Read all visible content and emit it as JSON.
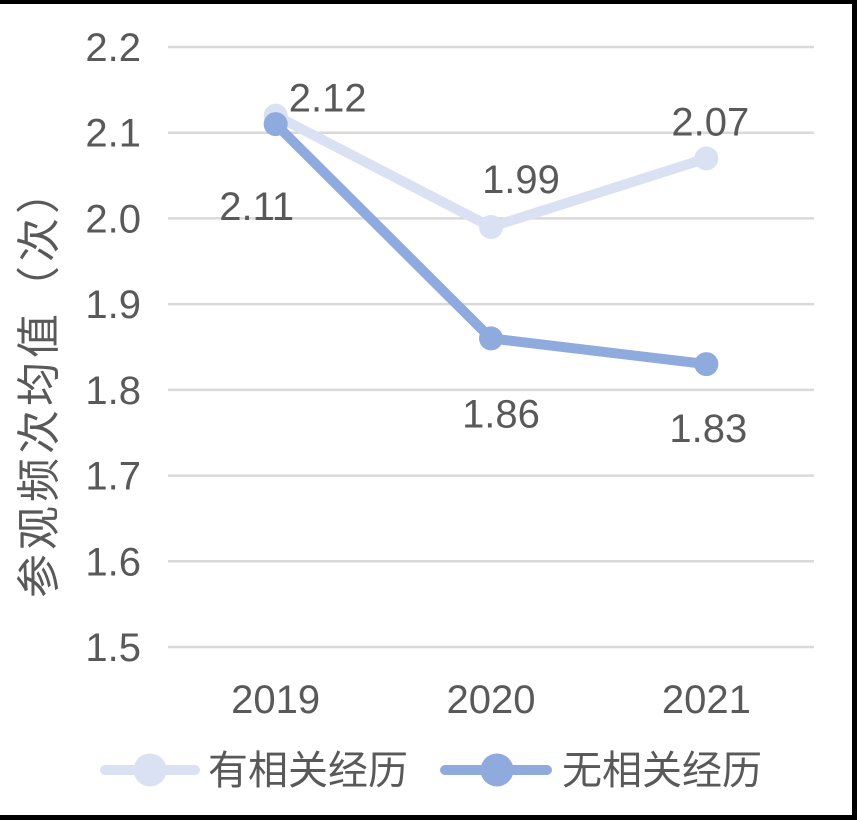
{
  "chart_data": {
    "type": "line",
    "title": "",
    "xlabel": "",
    "ylabel": "参观频次均值（次）",
    "categories": [
      "2019",
      "2020",
      "2021"
    ],
    "series": [
      {
        "name": "有相关经历",
        "color": "#D9E1F2",
        "values": [
          2.12,
          1.99,
          2.07
        ],
        "data_labels": [
          "2.12",
          "1.99",
          "2.07"
        ]
      },
      {
        "name": "无相关经历",
        "color": "#8FAADC",
        "values": [
          2.11,
          1.86,
          1.83
        ],
        "data_labels": [
          "2.11",
          "1.86",
          "1.83"
        ]
      }
    ],
    "ylim": [
      1.5,
      2.2
    ],
    "ytick_step": 0.1,
    "yticks": [
      "2.2",
      "2.1",
      "2.0",
      "1.9",
      "1.8",
      "1.7",
      "1.6",
      "1.5"
    ],
    "grid": true,
    "legend_position": "bottom",
    "colors": {
      "gridline": "#D9D9D9",
      "axis_text": "#595959",
      "data_label_text": "#404040",
      "background": "#FFFFFF",
      "frame": "#000000"
    }
  }
}
